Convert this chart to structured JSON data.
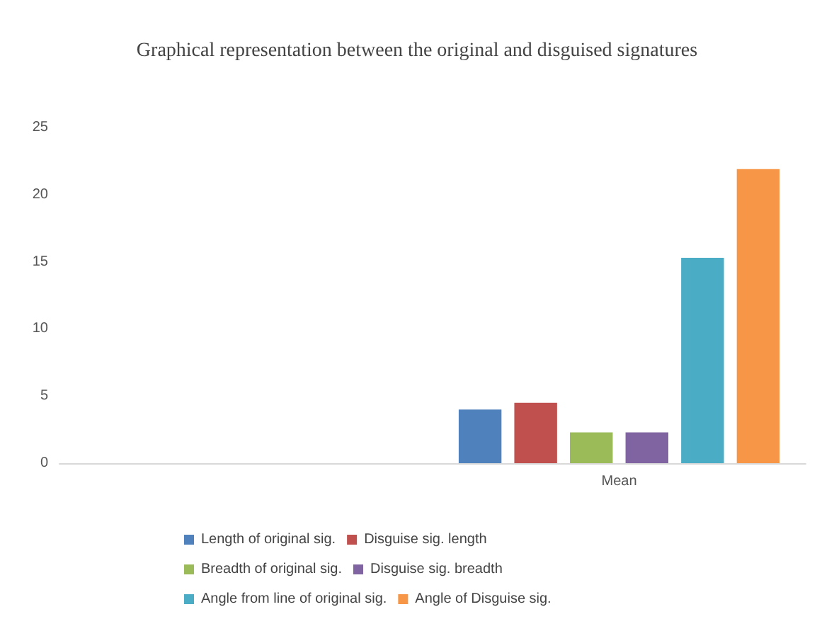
{
  "chart_data": {
    "type": "bar",
    "title": "Graphical representation between the original and disguised signatures",
    "categories": [
      null,
      "Mean"
    ],
    "series": [
      {
        "name": "Length of original sig.",
        "color": "#4f81bd",
        "values": [
          null,
          4.0
        ]
      },
      {
        "name": "Disguise sig. length",
        "color": "#c0504d",
        "values": [
          null,
          4.5
        ]
      },
      {
        "name": "Breadth of original sig.",
        "color": "#9bbb59",
        "values": [
          null,
          2.3
        ]
      },
      {
        "name": "Disguise sig. breadth",
        "color": "#8064a2",
        "values": [
          null,
          2.3
        ]
      },
      {
        "name": "Angle from line of original sig.",
        "color": "#4bacc6",
        "values": [
          null,
          15.3
        ]
      },
      {
        "name": "Angle of Disguise sig.",
        "color": "#f79646",
        "values": [
          null,
          21.9
        ]
      }
    ],
    "ylim": [
      0,
      25
    ],
    "yticks": [
      0,
      5,
      10,
      15,
      20,
      25
    ],
    "grid": false,
    "legend": "bottom"
  }
}
